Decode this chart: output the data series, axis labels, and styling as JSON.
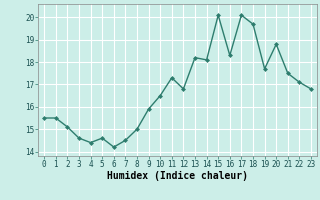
{
  "xlabel": "Humidex (Indice chaleur)",
  "ylabel": "",
  "x": [
    0,
    1,
    2,
    3,
    4,
    5,
    6,
    7,
    8,
    9,
    10,
    11,
    12,
    13,
    14,
    15,
    16,
    17,
    18,
    19,
    20,
    21,
    22,
    23
  ],
  "y": [
    15.5,
    15.5,
    15.1,
    14.6,
    14.4,
    14.6,
    14.2,
    14.5,
    15.0,
    15.9,
    16.5,
    17.3,
    16.8,
    18.2,
    18.1,
    20.1,
    18.3,
    20.1,
    19.7,
    17.7,
    18.8,
    17.5,
    17.1,
    16.8
  ],
  "line_color": "#2e7d6e",
  "marker_color": "#2e7d6e",
  "bg_color": "#cceee8",
  "grid_color": "#ffffff",
  "xlim_min": -0.5,
  "xlim_max": 23.5,
  "ylim_min": 13.8,
  "ylim_max": 20.6,
  "yticks": [
    14,
    15,
    16,
    17,
    18,
    19,
    20
  ],
  "xtick_labels": [
    "0",
    "1",
    "2",
    "3",
    "4",
    "5",
    "6",
    "7",
    "8",
    "9",
    "10",
    "11",
    "12",
    "13",
    "14",
    "15",
    "16",
    "17",
    "18",
    "19",
    "20",
    "21",
    "22",
    "23"
  ],
  "label_fontsize": 7,
  "tick_fontsize": 5.5,
  "line_width": 1.0,
  "marker_size": 2.0
}
